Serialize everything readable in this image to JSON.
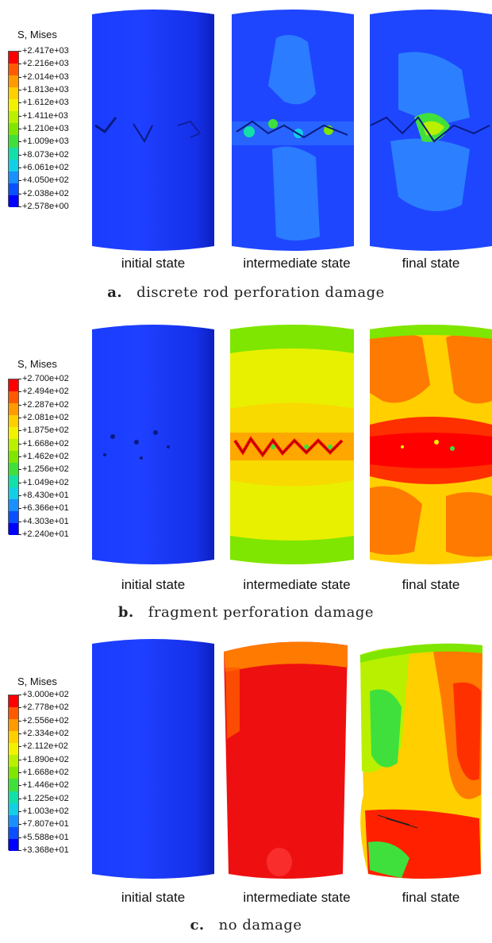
{
  "panels": [
    {
      "id": "a",
      "legend": {
        "title": "S, Mises",
        "values": [
          "+2.417e+03",
          "+2.216e+03",
          "+2.014e+03",
          "+1.813e+03",
          "+1.612e+03",
          "+1.411e+03",
          "+1.210e+03",
          "+1.009e+03",
          "+8.073e+02",
          "+6.061e+02",
          "+4.050e+02",
          "+2.038e+02",
          "+2.578e+00"
        ]
      },
      "states": [
        "initial state",
        "intermediate state",
        "final state"
      ],
      "caption_letter": "a.",
      "caption_text": "discrete rod perforation damage"
    },
    {
      "id": "b",
      "legend": {
        "title": "S, Mises",
        "values": [
          "+2.700e+02",
          "+2.494e+02",
          "+2.287e+02",
          "+2.081e+02",
          "+1.875e+02",
          "+1.668e+02",
          "+1.462e+02",
          "+1.256e+02",
          "+1.049e+02",
          "+8.430e+01",
          "+6.366e+01",
          "+4.303e+01",
          "+2.240e+01"
        ]
      },
      "states": [
        "initial state",
        "intermediate state",
        "final state"
      ],
      "caption_letter": "b.",
      "caption_text": "fragment perforation damage"
    },
    {
      "id": "c",
      "legend": {
        "title": "S, Mises",
        "values": [
          "+3.000e+02",
          "+2.778e+02",
          "+2.556e+02",
          "+2.334e+02",
          "+2.112e+02",
          "+1.890e+02",
          "+1.668e+02",
          "+1.446e+02",
          "+1.225e+02",
          "+1.003e+02",
          "+7.807e+01",
          "+5.588e+01",
          "+3.368e+01"
        ]
      },
      "states": [
        "initial state",
        "intermediate state",
        "final state"
      ],
      "caption_letter": "c.",
      "caption_text": "no damage"
    }
  ],
  "colors": {
    "contour_scale": [
      "#ff0000",
      "#ff5a00",
      "#ff9a00",
      "#ffcf00",
      "#f2f200",
      "#b8f000",
      "#7ee600",
      "#3fe03c",
      "#12e0a8",
      "#12cfe6",
      "#1890ff",
      "#0a50ff",
      "#0000ff"
    ]
  }
}
